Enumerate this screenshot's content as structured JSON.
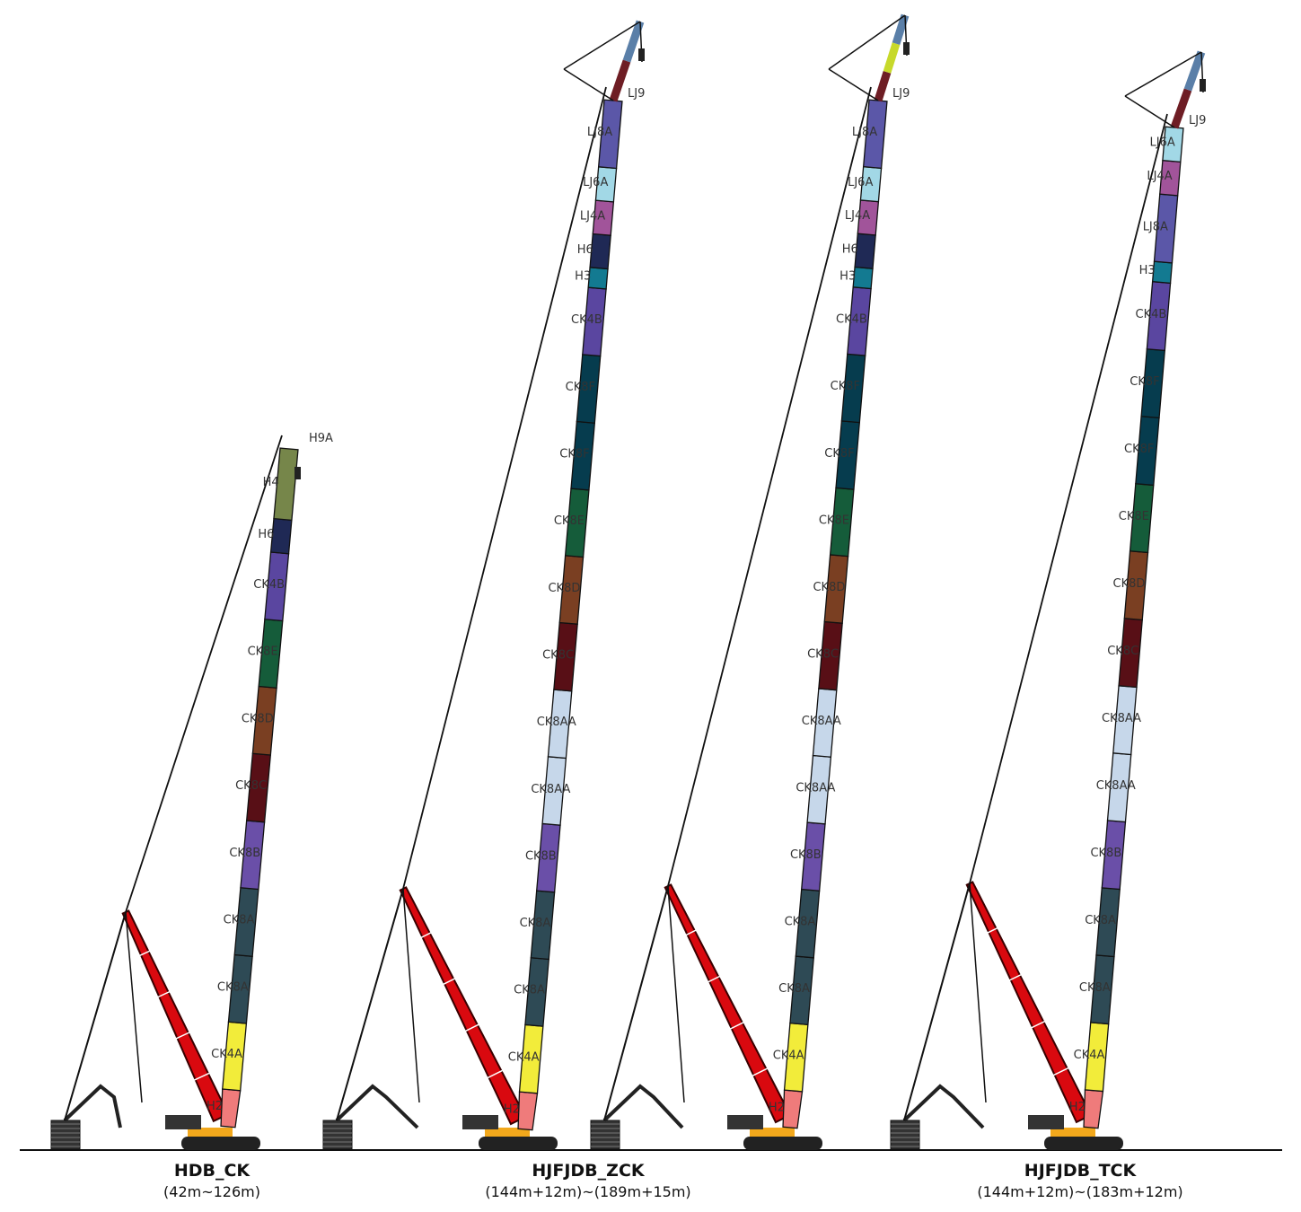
{
  "colors": {
    "H2": "#ef7b7b",
    "CK4A": "#f2ec3a",
    "CK8A": "#2e4a55",
    "CK8B": "#6a4fa8",
    "CK8C": "#580f16",
    "CK8D": "#7a3f22",
    "CK8E": "#155c3a",
    "CK8F": "#063c4e",
    "CK8AA": "#c6d7ea",
    "CK4B": "#5a46a0",
    "H3": "#137a91",
    "H4": "#76864a",
    "H6": "#1f2955",
    "H9A": "#444444",
    "LJ4A": "#a1549a",
    "LJ6A": "#a2d8e6",
    "LJ8A": "#5b57a8",
    "LJ9": "#555555",
    "mast": "#d9090f",
    "track": "#222222",
    "counterweight": "#f2a81c",
    "tip_blue": "#5a7fa8",
    "tip_green": "#c7d92b",
    "tip_maroon": "#6e1d24"
  },
  "cranes": [
    {
      "id": "hdb-ck",
      "name": "HDB_CK",
      "range": "(42m~126m)",
      "segments": [
        "H2",
        "CK4A",
        "CK8A",
        "CK8A",
        "CK8B",
        "CK8C",
        "CK8D",
        "CK8E",
        "CK4B",
        "H6",
        "H4"
      ],
      "top_label": "H9A",
      "tip": []
    },
    {
      "id": "hjfjdb-zck",
      "name": "HJFJDB_ZCK",
      "range": "(144m+12m)~(189m+15m)",
      "segments": [
        "H2",
        "CK4A",
        "CK8A",
        "CK8A",
        "CK8B",
        "CK8AA",
        "CK8AA",
        "CK8C",
        "CK8D",
        "CK8E",
        "CK8F",
        "CK8F",
        "CK4B",
        "H3",
        "H6",
        "LJ4A",
        "LJ6A",
        "LJ8A"
      ],
      "top_label": "LJ9",
      "tip": [
        "tip_maroon",
        "tip_blue"
      ]
    },
    {
      "id": "hjfjdb-zck-2",
      "name": "",
      "range": "",
      "segments": [
        "H2",
        "CK4A",
        "CK8A",
        "CK8A",
        "CK8B",
        "CK8AA",
        "CK8AA",
        "CK8C",
        "CK8D",
        "CK8E",
        "CK8F",
        "CK8F",
        "CK4B",
        "H3",
        "H6",
        "LJ4A",
        "LJ6A",
        "LJ8A"
      ],
      "top_label": "LJ9",
      "tip": [
        "tip_maroon",
        "tip_green",
        "tip_blue"
      ]
    },
    {
      "id": "hjfjdb-tck",
      "name": "HJFJDB_TCK",
      "range": "(144m+12m)~(183m+12m)",
      "segments": [
        "H2",
        "CK4A",
        "CK8A",
        "CK8A",
        "CK8B",
        "CK8AA",
        "CK8AA",
        "CK8C",
        "CK8D",
        "CK8E",
        "CK8F",
        "CK8F",
        "CK4B",
        "H3",
        "LJ8A",
        "LJ4A",
        "LJ6A"
      ],
      "top_label": "LJ9",
      "tip": [
        "tip_maroon",
        "tip_blue"
      ]
    }
  ]
}
